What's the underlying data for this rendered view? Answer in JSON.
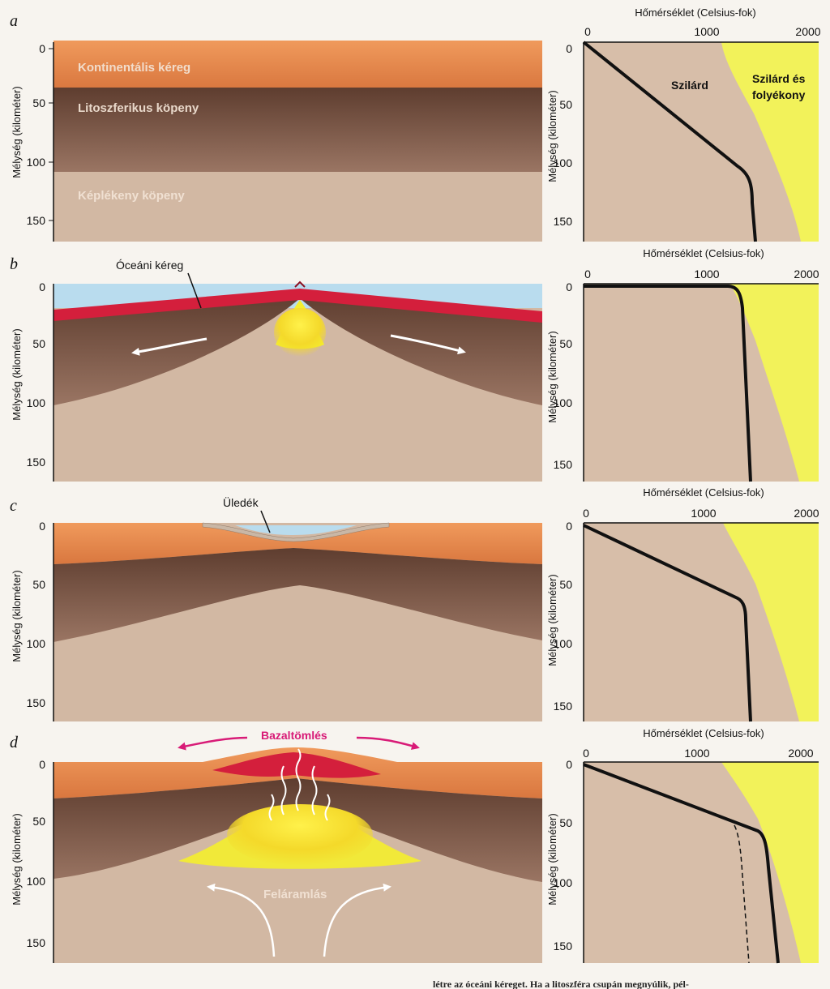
{
  "panels": [
    {
      "letter": "a",
      "labels": {
        "crust": "Kontinentális kéreg",
        "litho": "Litoszferikus köpeny",
        "plastic": "Képlékeny köpeny"
      },
      "graph": {
        "title": "Hőmérséklet (Celsius-fok)",
        "solid": "Szilárd",
        "solid_liquid_1": "Szilárd és",
        "solid_liquid_2": "folyékony"
      }
    },
    {
      "letter": "b",
      "labels": {
        "oceanic": "Óceáni kéreg"
      },
      "graph": {
        "title": "Hőmérséklet (Celsius-fok)"
      }
    },
    {
      "letter": "c",
      "labels": {
        "sediment": "Üledék"
      },
      "graph": {
        "title": "Hőmérséklet (Celsius-fok)"
      }
    },
    {
      "letter": "d",
      "labels": {
        "basalt": "Bazaltömlés",
        "upwelling": "Feláramlás"
      },
      "graph": {
        "title": "Hőmérséklet (Celsius-fok)"
      }
    }
  ],
  "axes": {
    "depth_title": "Mélység (kilométer)",
    "depth_ticks": [
      "0",
      "50",
      "100",
      "150"
    ],
    "temp_ticks": [
      "0",
      "1000",
      "2000"
    ]
  },
  "footer": "létre az óceáni kéreget. Ha a litoszféra csupán megnyúlik, pél-",
  "colors": {
    "continental_crust": "#e88a4e",
    "lithospheric_mantle": "#7f5a48",
    "plastic_mantle": "#d2b8a3",
    "oceanic_crust": "#d41f3c",
    "seawater": "#b9dcee",
    "melt": "#f4ee2e",
    "solid_field": "#d7bea9",
    "partial_melt_field": "#f2f25a",
    "arrow_magenta": "#d81b77"
  }
}
